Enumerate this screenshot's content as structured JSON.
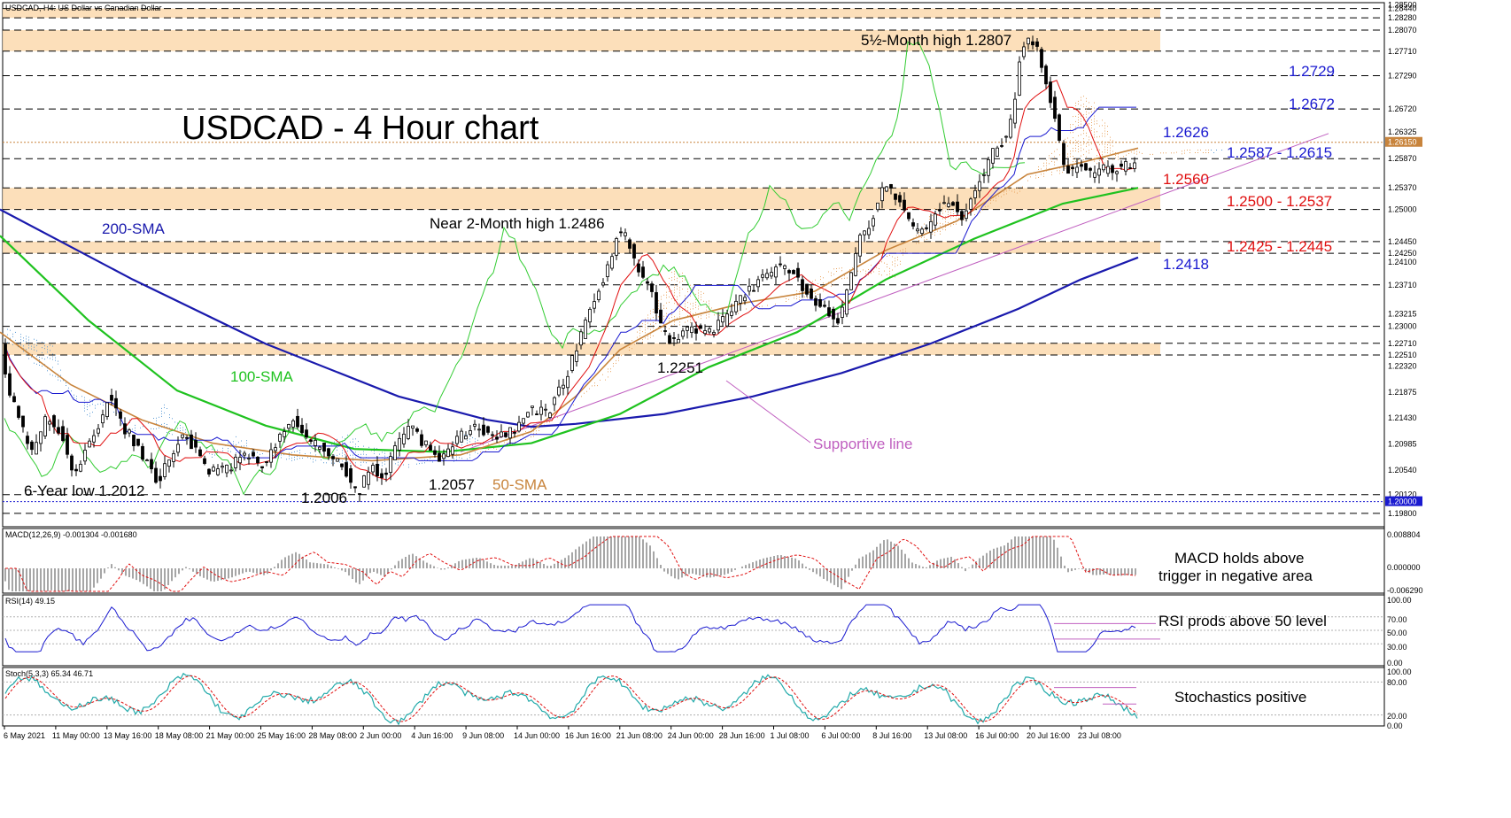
{
  "header": {
    "symbol_line": "USDCAD, H4: US Dollar vs Canadian Dollar"
  },
  "colors": {
    "background": "#ffffff",
    "grid_dashed": "#000000",
    "zone_fill": "#fbd9ae",
    "sma200": "#1a1aad",
    "sma100": "#1fc21f",
    "sma50": "#c8843c",
    "tenkan": "#e01010",
    "kijun": "#1a1ad0",
    "chikou": "#33cc33",
    "cloud_bear": "#5b9bd5",
    "cloud_bull": "#e8a460",
    "support_line": "#c060c0",
    "annotation_red": "#e01010",
    "annotation_blue": "#1a1ad0",
    "macd_hist": "#909090",
    "macd_signal": "#e01010",
    "rsi_line": "#1a1ad0",
    "stoch_main": "#22aaaa",
    "stoch_signal": "#e01010"
  },
  "chart_data": {
    "type": "candlestick",
    "title": "USDCAD - 4 Hour chart",
    "timeframe": "H4",
    "ylim": [
      1.1957,
      1.2854
    ],
    "price_axis_labels": [
      "1.28500",
      "1.28440",
      "1.28280",
      "1.28070",
      "1.27710",
      "1.27290",
      "1.26720",
      "1.26325",
      "1.26150",
      "1.25870",
      "1.25370",
      "1.25000",
      "1.24450",
      "1.24250",
      "1.24100",
      "1.23710",
      "1.23215",
      "1.23000",
      "1.22710",
      "1.22510",
      "1.22320",
      "1.21875",
      "1.21430",
      "1.20985",
      "1.20540",
      "1.20120",
      "1.20000",
      "1.19800"
    ],
    "highlight_labels": [
      "1.26150",
      "1.20000"
    ],
    "dashed_levels": [
      1.2844,
      1.2828,
      1.2807,
      1.2771,
      1.2729,
      1.2672,
      1.2587,
      1.2537,
      1.25,
      1.2445,
      1.2425,
      1.2371,
      1.23,
      1.2271,
      1.2251,
      1.2012,
      1.198
    ],
    "dotted_levels": [
      1.2615,
      1.2
    ],
    "zones": [
      {
        "from": 1.2828,
        "to": 1.2844
      },
      {
        "from": 1.2771,
        "to": 1.2807
      },
      {
        "from": 1.25,
        "to": 1.2537
      },
      {
        "from": 1.2425,
        "to": 1.2445
      },
      {
        "from": 1.2251,
        "to": 1.2271
      }
    ],
    "x_labels": [
      "6 May 2021",
      "11 May 00:00",
      "13 May 16:00",
      "18 May 08:00",
      "21 May 00:00",
      "25 May 16:00",
      "28 May 08:00",
      "2 Jun 00:00",
      "4 Jun 16:00",
      "9 Jun 08:00",
      "14 Jun 00:00",
      "16 Jun 16:00",
      "21 Jun 08:00",
      "24 Jun 00:00",
      "28 Jun 16:00",
      "1 Jul 08:00",
      "6 Jul 00:00",
      "8 Jul 16:00",
      "13 Jul 08:00",
      "16 Jul 00:00",
      "20 Jul 16:00",
      "23 Jul 08:00"
    ],
    "price_path": [
      [
        0,
        1.229
      ],
      [
        10,
        1.22
      ],
      [
        25,
        1.213
      ],
      [
        40,
        1.208
      ],
      [
        55,
        1.215
      ],
      [
        70,
        1.212
      ],
      [
        85,
        1.205
      ],
      [
        100,
        1.209
      ],
      [
        115,
        1.214
      ],
      [
        125,
        1.2185
      ],
      [
        140,
        1.213
      ],
      [
        155,
        1.21
      ],
      [
        170,
        1.206
      ],
      [
        180,
        1.203
      ],
      [
        195,
        1.208
      ],
      [
        210,
        1.212
      ],
      [
        225,
        1.208
      ],
      [
        240,
        1.205
      ],
      [
        260,
        1.206
      ],
      [
        280,
        1.208
      ],
      [
        300,
        1.206
      ],
      [
        320,
        1.212
      ],
      [
        335,
        1.214
      ],
      [
        350,
        1.21
      ],
      [
        370,
        1.209
      ],
      [
        390,
        1.206
      ],
      [
        405,
        1.201
      ],
      [
        420,
        1.206
      ],
      [
        435,
        1.204
      ],
      [
        450,
        1.21
      ],
      [
        465,
        1.213
      ],
      [
        480,
        1.21
      ],
      [
        500,
        1.207
      ],
      [
        520,
        1.211
      ],
      [
        540,
        1.213
      ],
      [
        560,
        1.211
      ],
      [
        580,
        1.212
      ],
      [
        600,
        1.216
      ],
      [
        620,
        1.215
      ],
      [
        640,
        1.221
      ],
      [
        655,
        1.227
      ],
      [
        670,
        1.233
      ],
      [
        690,
        1.241
      ],
      [
        700,
        1.247
      ],
      [
        710,
        1.245
      ],
      [
        720,
        1.24
      ],
      [
        735,
        1.237
      ],
      [
        750,
        1.229
      ],
      [
        765,
        1.227
      ],
      [
        780,
        1.23
      ],
      [
        800,
        1.229
      ],
      [
        820,
        1.231
      ],
      [
        840,
        1.235
      ],
      [
        860,
        1.238
      ],
      [
        880,
        1.24
      ],
      [
        900,
        1.239
      ],
      [
        915,
        1.235
      ],
      [
        930,
        1.233
      ],
      [
        950,
        1.231
      ],
      [
        970,
        1.244
      ],
      [
        985,
        1.248
      ],
      [
        1000,
        1.254
      ],
      [
        1015,
        1.252
      ],
      [
        1030,
        1.247
      ],
      [
        1045,
        1.246
      ],
      [
        1060,
        1.25
      ],
      [
        1075,
        1.252
      ],
      [
        1090,
        1.248
      ],
      [
        1105,
        1.254
      ],
      [
        1120,
        1.259
      ],
      [
        1135,
        1.262
      ],
      [
        1145,
        1.266
      ],
      [
        1155,
        1.278
      ],
      [
        1165,
        1.279
      ],
      [
        1175,
        1.277
      ],
      [
        1185,
        1.271
      ],
      [
        1195,
        1.264
      ],
      [
        1205,
        1.256
      ],
      [
        1220,
        1.258
      ],
      [
        1235,
        1.256
      ],
      [
        1250,
        1.257
      ],
      [
        1265,
        1.257
      ],
      [
        1280,
        1.258
      ]
    ],
    "sma200": [
      [
        0,
        1.25
      ],
      [
        150,
        1.238
      ],
      [
        300,
        1.227
      ],
      [
        450,
        1.218
      ],
      [
        550,
        1.214
      ],
      [
        600,
        1.2128
      ],
      [
        650,
        1.2133
      ],
      [
        750,
        1.215
      ],
      [
        850,
        1.218
      ],
      [
        950,
        1.222
      ],
      [
        1050,
        1.227
      ],
      [
        1150,
        1.233
      ],
      [
        1220,
        1.238
      ],
      [
        1285,
        1.2418
      ]
    ],
    "sma100": [
      [
        0,
        1.2455
      ],
      [
        100,
        1.231
      ],
      [
        200,
        1.219
      ],
      [
        300,
        1.213
      ],
      [
        400,
        1.209
      ],
      [
        500,
        1.2085
      ],
      [
        600,
        1.21
      ],
      [
        700,
        1.215
      ],
      [
        800,
        1.223
      ],
      [
        900,
        1.229
      ],
      [
        1000,
        1.238
      ],
      [
        1100,
        1.245
      ],
      [
        1200,
        1.251
      ],
      [
        1285,
        1.2537
      ]
    ],
    "sma50": [
      [
        0,
        1.229
      ],
      [
        80,
        1.22
      ],
      [
        160,
        1.214
      ],
      [
        240,
        1.21
      ],
      [
        330,
        1.208
      ],
      [
        420,
        1.207
      ],
      [
        520,
        1.208
      ],
      [
        600,
        1.212
      ],
      [
        650,
        1.218
      ],
      [
        700,
        1.226
      ],
      [
        760,
        1.231
      ],
      [
        840,
        1.234
      ],
      [
        920,
        1.236
      ],
      [
        1000,
        1.243
      ],
      [
        1080,
        1.248
      ],
      [
        1160,
        1.256
      ],
      [
        1220,
        1.258
      ],
      [
        1285,
        1.2605
      ]
    ],
    "support_line": [
      [
        520,
        1.2085
      ],
      [
        1500,
        1.263
      ]
    ],
    "annotations": [
      {
        "text": "5½-Month high 1.2807",
        "color": "black"
      },
      {
        "text": "1.2729",
        "color": "blue"
      },
      {
        "text": "1.2672",
        "color": "blue"
      },
      {
        "text": "1.2626",
        "color": "blue"
      },
      {
        "text": "1.2587 - 1.2615",
        "color": "blue"
      },
      {
        "text": "1.2560",
        "color": "red"
      },
      {
        "text": "1.2500 - 1.2537",
        "color": "red"
      },
      {
        "text": "1.2425 - 1.2445",
        "color": "red"
      },
      {
        "text": "1.2418",
        "color": "blue"
      },
      {
        "text": "Near 2-Month high 1.2486",
        "color": "black"
      },
      {
        "text": "200-SMA",
        "color": "blue"
      },
      {
        "text": "100-SMA",
        "color": "green"
      },
      {
        "text": "50-SMA",
        "color": "orange"
      },
      {
        "text": "1.2251",
        "color": "black"
      },
      {
        "text": "Supportive line",
        "color": "purple"
      },
      {
        "text": "6-Year low 1.2012",
        "color": "black"
      },
      {
        "text": "1.2006",
        "color": "black"
      },
      {
        "text": "1.2057",
        "color": "black"
      }
    ]
  },
  "macd_panel": {
    "label": "MACD(12,26,9) -0.001304 -0.001680",
    "axis_labels": [
      "0.008804",
      "0.000000",
      "-0.006290"
    ],
    "annotation_line1": "MACD holds above",
    "annotation_line2": "trigger in negative area"
  },
  "rsi_panel": {
    "label": "RSI(14) 49.15",
    "axis_labels": [
      "100.00",
      "70.00",
      "50.00",
      "30.00",
      "0.00"
    ],
    "annotation": "RSI prods above 50 level"
  },
  "stoch_panel": {
    "label": "Stoch(5,3,3) 65.34 46.71",
    "axis_labels": [
      "100.00",
      "80.00",
      "20.00",
      "0.00"
    ],
    "annotation": "Stochastics positive"
  }
}
